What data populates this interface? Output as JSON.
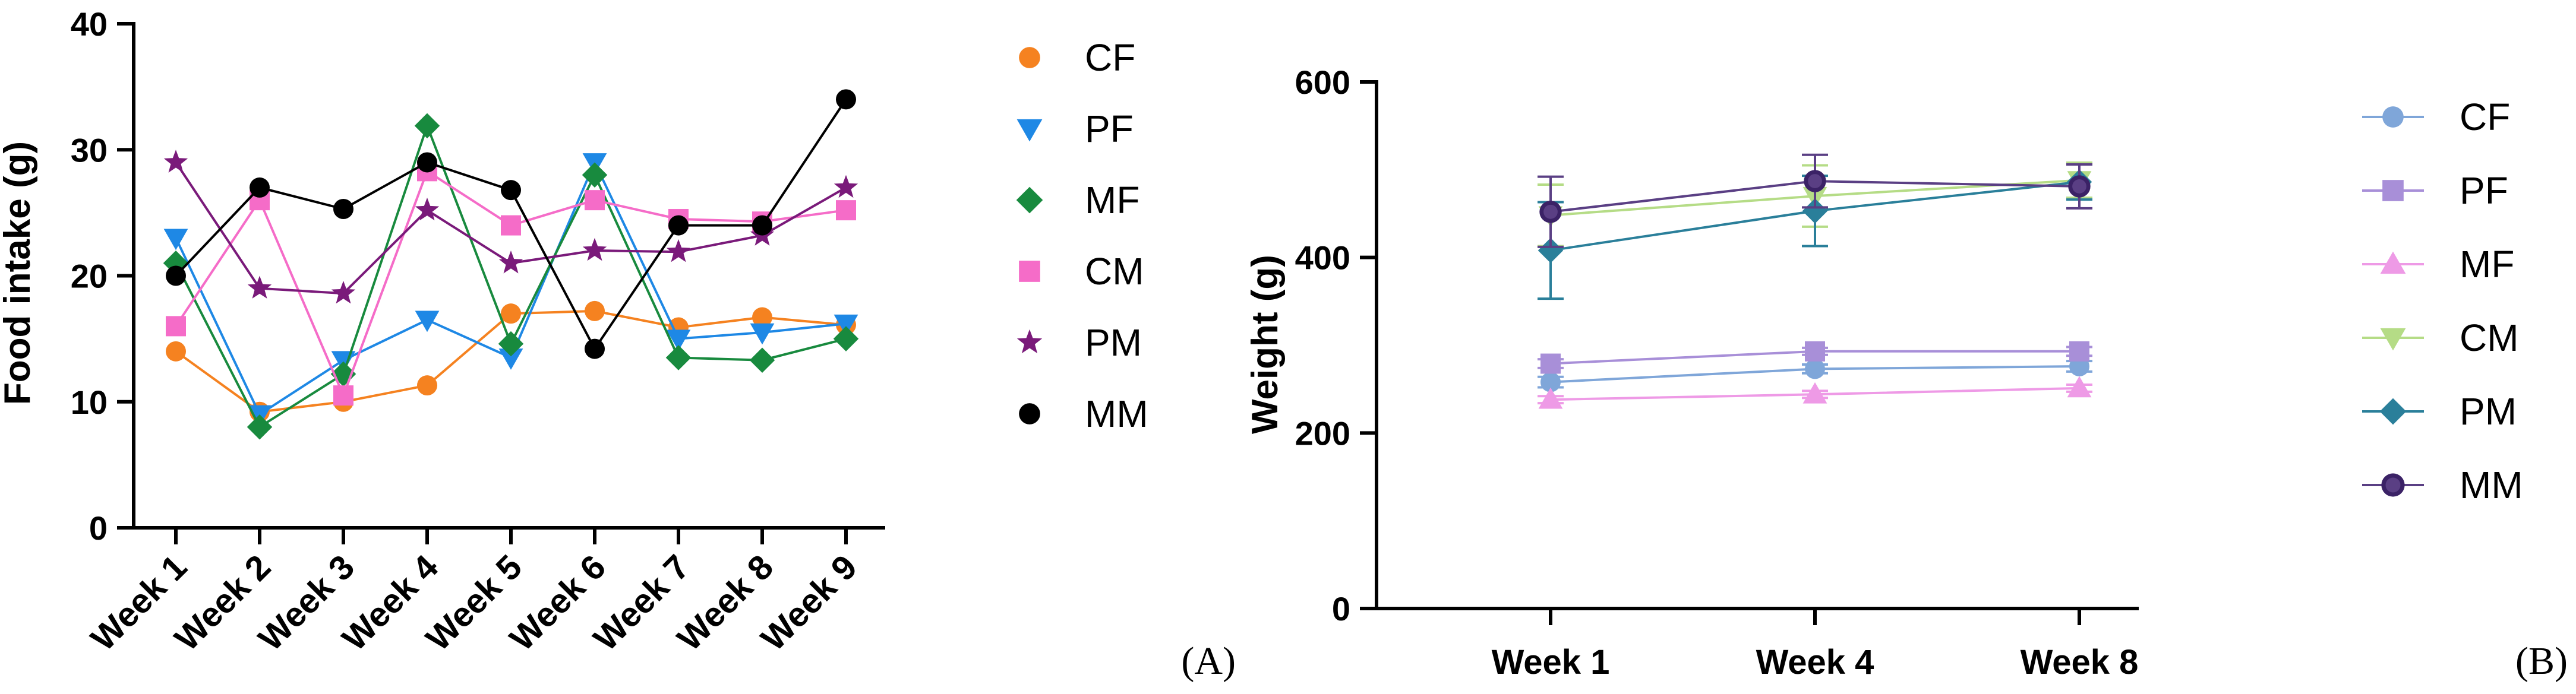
{
  "chart_data": [
    {
      "type": "line",
      "panel_label": "(A)",
      "ylabel": "Food intake (g)",
      "xlabel": "",
      "ylim": [
        0,
        40
      ],
      "yticks": [
        "0",
        "10",
        "20",
        "30",
        "40"
      ],
      "categories": [
        "Week 1",
        "Week 2",
        "Week 3",
        "Week 4",
        "Week 5",
        "Week 6",
        "Week 7",
        "Week 8",
        "Week 9"
      ],
      "legend_position": "right",
      "series": [
        {
          "name": "CF",
          "color": "#F58220",
          "marker": "circle",
          "values": [
            14.0,
            9.2,
            10.0,
            11.3,
            17.0,
            17.2,
            15.9,
            16.7,
            16.1
          ]
        },
        {
          "name": "PF",
          "color": "#1E88E5",
          "marker": "triangle-down",
          "values": [
            23.0,
            9.0,
            13.3,
            16.5,
            13.5,
            29.0,
            15.0,
            15.5,
            16.2
          ]
        },
        {
          "name": "MF",
          "color": "#188A3E",
          "marker": "diamond",
          "values": [
            21.0,
            8.0,
            12.2,
            31.9,
            14.6,
            28.0,
            13.5,
            13.3,
            15.0
          ]
        },
        {
          "name": "CM",
          "color": "#F56CC8",
          "marker": "square",
          "values": [
            16.0,
            26.0,
            10.5,
            28.3,
            24.0,
            26.0,
            24.5,
            24.3,
            25.2
          ]
        },
        {
          "name": "PM",
          "color": "#7A1A7A",
          "marker": "star",
          "values": [
            29.0,
            19.0,
            18.6,
            25.2,
            21.0,
            22.0,
            21.9,
            23.2,
            27.0
          ]
        },
        {
          "name": "MM",
          "color": "#000000",
          "marker": "circle",
          "values": [
            20.0,
            27.0,
            25.3,
            29.0,
            26.8,
            14.2,
            24.0,
            24.0,
            34.0
          ]
        }
      ]
    },
    {
      "type": "line",
      "panel_label": "(B)",
      "ylabel": "Weight (g)",
      "xlabel": "",
      "ylim": [
        0,
        600
      ],
      "yticks": [
        "0",
        "200",
        "400",
        "600"
      ],
      "categories": [
        "Week 1",
        "Week 4",
        "Week 8"
      ],
      "legend_position": "right",
      "series": [
        {
          "name": "CF",
          "color": "#7FA6D9",
          "marker": "circle",
          "values": [
            258,
            273,
            276
          ],
          "errors": [
            6,
            5,
            6
          ]
        },
        {
          "name": "PF",
          "color": "#A88FD8",
          "marker": "square",
          "values": [
            279,
            293,
            293
          ],
          "errors": [
            5,
            4,
            5
          ]
        },
        {
          "name": "MF",
          "color": "#EE9AE6",
          "marker": "triangle-up",
          "values": [
            238,
            244,
            251
          ],
          "errors": [
            4,
            4,
            4
          ]
        },
        {
          "name": "CM",
          "color": "#B5DC86",
          "marker": "triangle-down",
          "values": [
            448,
            470,
            488
          ],
          "errors": [
            35,
            35,
            20
          ]
        },
        {
          "name": "PM",
          "color": "#2A7F9A",
          "marker": "diamond",
          "values": [
            408,
            453,
            486
          ],
          "errors": [
            55,
            40,
            20
          ]
        },
        {
          "name": "MM",
          "color": "#5A3F84",
          "marker": "circle-ring",
          "values": [
            452,
            487,
            481
          ],
          "errors": [
            40,
            30,
            25
          ]
        }
      ]
    }
  ]
}
